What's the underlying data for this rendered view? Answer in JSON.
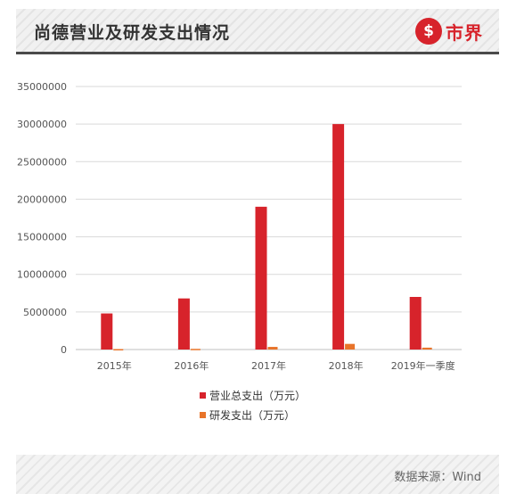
{
  "header": {
    "title": "尚德营业及研发支出情况",
    "logo_glyph": "$",
    "logo_text": "市界"
  },
  "footer": {
    "source": "数据来源：Wind"
  },
  "colors": {
    "total_expense": "#d7232b",
    "rd_expense": "#e8742a",
    "grid": "#d9d9d9",
    "axis_text": "#555555"
  },
  "chart_data": {
    "type": "bar",
    "categories": [
      "2015年",
      "2016年",
      "2017年",
      "2018年",
      "2019年一季度"
    ],
    "series": [
      {
        "name": "营业总支出（万元）",
        "values": [
          4800000,
          6800000,
          19000000,
          30000000,
          7000000
        ]
      },
      {
        "name": "研发支出（万元）",
        "values": [
          60000,
          90000,
          350000,
          750000,
          250000
        ]
      }
    ],
    "ylim": [
      0,
      35000000
    ],
    "yticks": [
      0,
      5000000,
      10000000,
      15000000,
      20000000,
      25000000,
      30000000,
      35000000
    ],
    "grid": true,
    "legend_position": "bottom-center"
  }
}
